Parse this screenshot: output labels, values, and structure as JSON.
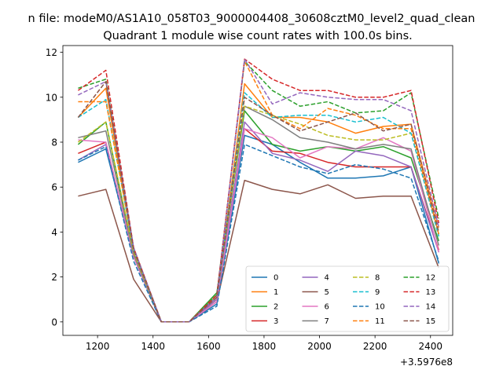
{
  "chart_data": {
    "type": "line",
    "suptitle": "n file: modeM0/AS1A10_058T03_9000004408_30608cztM0_level2_quad_clean",
    "title": "Quadrant 1 module wise count rates with 100.0s bins.",
    "xlabel": "",
    "ylabel": "",
    "x_offset_label": "+3.5976e8",
    "x": [
      1130,
      1230,
      1330,
      1430,
      1530,
      1630,
      1730,
      1830,
      1930,
      2030,
      2130,
      2230,
      2330,
      2430
    ],
    "xlim": [
      1075,
      2480
    ],
    "ylim": [
      -0.6,
      12.3
    ],
    "xticks": [
      1200,
      1400,
      1600,
      1800,
      2000,
      2200,
      2400
    ],
    "xtick_labels": [
      "1200",
      "1400",
      "1600",
      "1800",
      "2000",
      "2200",
      "2400"
    ],
    "yticks": [
      0,
      2,
      4,
      6,
      8,
      10,
      12
    ],
    "ytick_labels": [
      "0",
      "2",
      "4",
      "6",
      "8",
      "10",
      "12"
    ],
    "legend_position": "lower-right",
    "legend_columns": 4,
    "series": [
      {
        "name": "0",
        "color": "#1f77b4",
        "dash": "solid",
        "values": [
          7.1,
          7.7,
          2.9,
          0,
          0,
          0.8,
          8.3,
          7.9,
          7.1,
          6.4,
          6.4,
          6.5,
          6.9,
          2.6
        ]
      },
      {
        "name": "1",
        "color": "#ff7f0e",
        "dash": "solid",
        "values": [
          9.1,
          10.4,
          3.1,
          0,
          0,
          1.0,
          10.6,
          9.1,
          9.1,
          8.9,
          8.4,
          8.7,
          8.8,
          4.2
        ]
      },
      {
        "name": "2",
        "color": "#2ca02c",
        "dash": "solid",
        "values": [
          7.9,
          8.9,
          3.0,
          0,
          0,
          1.3,
          9.4,
          7.9,
          7.6,
          7.8,
          7.6,
          7.8,
          7.3,
          3.6
        ]
      },
      {
        "name": "3",
        "color": "#d62728",
        "dash": "solid",
        "values": [
          7.5,
          8.0,
          2.9,
          0,
          0,
          1.0,
          8.6,
          7.6,
          7.5,
          7.1,
          6.9,
          6.9,
          6.9,
          3.2
        ]
      },
      {
        "name": "4",
        "color": "#9467bd",
        "dash": "solid",
        "values": [
          7.2,
          7.9,
          2.9,
          0,
          0,
          1.0,
          8.9,
          7.5,
          7.2,
          6.7,
          7.6,
          7.4,
          6.9,
          3.1
        ]
      },
      {
        "name": "5",
        "color": "#8c564b",
        "dash": "solid",
        "values": [
          5.6,
          5.9,
          1.9,
          0,
          0,
          0.9,
          6.3,
          5.9,
          5.7,
          6.1,
          5.5,
          5.6,
          5.6,
          2.4
        ]
      },
      {
        "name": "6",
        "color": "#e377c2",
        "dash": "solid",
        "values": [
          8.1,
          8.0,
          2.9,
          0,
          0,
          0.9,
          8.6,
          8.2,
          7.3,
          7.8,
          7.7,
          8.2,
          7.6,
          3.1
        ]
      },
      {
        "name": "7",
        "color": "#7f7f7f",
        "dash": "solid",
        "values": [
          8.2,
          8.5,
          3.0,
          0,
          0,
          1.1,
          9.6,
          9.0,
          8.2,
          8.0,
          7.7,
          7.9,
          7.7,
          3.4
        ]
      },
      {
        "name": "8",
        "color": "#bcbd22",
        "dash": "dashed",
        "values": [
          8.0,
          8.9,
          3.1,
          0,
          0,
          1.2,
          9.6,
          9.2,
          8.8,
          8.3,
          8.1,
          8.1,
          8.4,
          3.9
        ]
      },
      {
        "name": "9",
        "color": "#17becf",
        "dash": "dashed",
        "values": [
          9.1,
          9.9,
          3.2,
          0,
          0,
          1.1,
          10.2,
          9.1,
          9.2,
          9.2,
          8.9,
          9.1,
          8.4,
          3.8
        ]
      },
      {
        "name": "10",
        "color": "#1f77b4",
        "dash": "dashed",
        "values": [
          7.2,
          7.8,
          2.7,
          0,
          0,
          0.7,
          7.9,
          7.4,
          6.9,
          6.6,
          7.0,
          6.8,
          6.4,
          2.7
        ]
      },
      {
        "name": "11",
        "color": "#ff7f0e",
        "dash": "dashed",
        "values": [
          9.8,
          9.8,
          3.3,
          0,
          0,
          1.2,
          11.6,
          9.2,
          8.6,
          9.5,
          9.2,
          8.6,
          8.6,
          3.9
        ]
      },
      {
        "name": "12",
        "color": "#2ca02c",
        "dash": "dashed",
        "values": [
          10.4,
          10.8,
          3.3,
          0,
          0,
          1.2,
          11.6,
          10.3,
          9.6,
          9.8,
          9.3,
          9.4,
          10.2,
          4.6
        ]
      },
      {
        "name": "13",
        "color": "#d62728",
        "dash": "dashed",
        "values": [
          10.3,
          11.2,
          3.3,
          0,
          0,
          1.2,
          11.7,
          10.8,
          10.3,
          10.3,
          10.0,
          10.0,
          10.3,
          4.4
        ]
      },
      {
        "name": "14",
        "color": "#9467bd",
        "dash": "dashed",
        "values": [
          10.1,
          10.7,
          3.3,
          0,
          0,
          1.1,
          11.7,
          9.7,
          10.2,
          10.0,
          9.9,
          9.9,
          9.4,
          4.2
        ]
      },
      {
        "name": "15",
        "color": "#8c564b",
        "dash": "dashed",
        "values": [
          9.1,
          10.7,
          3.2,
          0,
          0,
          1.1,
          10.0,
          9.2,
          8.5,
          8.9,
          9.3,
          8.5,
          8.8,
          4.0
        ]
      }
    ]
  }
}
